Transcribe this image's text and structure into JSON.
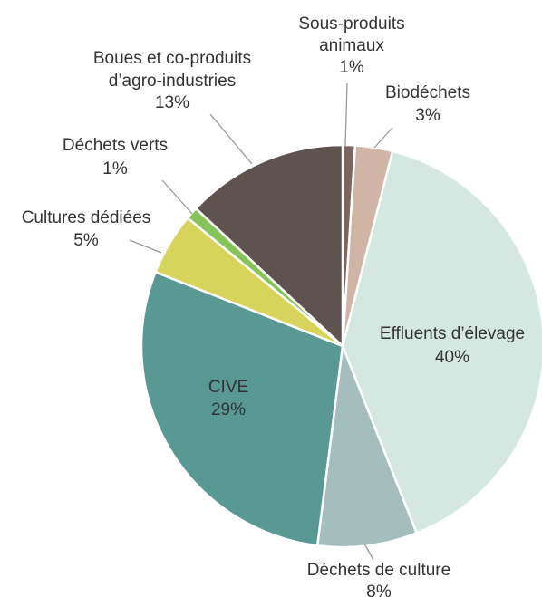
{
  "chart_data": {
    "type": "pie",
    "start_angle_deg": 0,
    "direction": "clockwise",
    "slices": [
      {
        "key": "sous-produits-animaux",
        "lines": [
          "Sous-produits",
          "animaux"
        ],
        "pct_label": "1%",
        "value": 1,
        "color": "#7d6660"
      },
      {
        "key": "biodechets",
        "lines": [
          "Biodéchets"
        ],
        "pct_label": "3%",
        "value": 3,
        "color": "#d0b4a6"
      },
      {
        "key": "effluents-delevage",
        "lines": [
          "Effluents d’élevage"
        ],
        "pct_label": "40%",
        "value": 40,
        "color": "#d4e8e1"
      },
      {
        "key": "dechets-de-culture",
        "lines": [
          "Déchets de culture"
        ],
        "pct_label": "8%",
        "value": 8,
        "color": "#a4bdbd"
      },
      {
        "key": "cive",
        "lines": [
          "CIVE"
        ],
        "pct_label": "29%",
        "value": 29,
        "color": "#5a9894"
      },
      {
        "key": "cultures-dediees",
        "lines": [
          "Cultures dédiées"
        ],
        "pct_label": "5%",
        "value": 5,
        "color": "#d6d45a"
      },
      {
        "key": "dechets-verts",
        "lines": [
          "Déchets verts"
        ],
        "pct_label": "1%",
        "value": 1,
        "color": "#86c45a"
      },
      {
        "key": "boues-agro-industries",
        "lines": [
          "Boues et co-produits",
          "d’agro-industries"
        ],
        "pct_label": "13%",
        "value": 13,
        "color": "#5f5350"
      }
    ]
  }
}
